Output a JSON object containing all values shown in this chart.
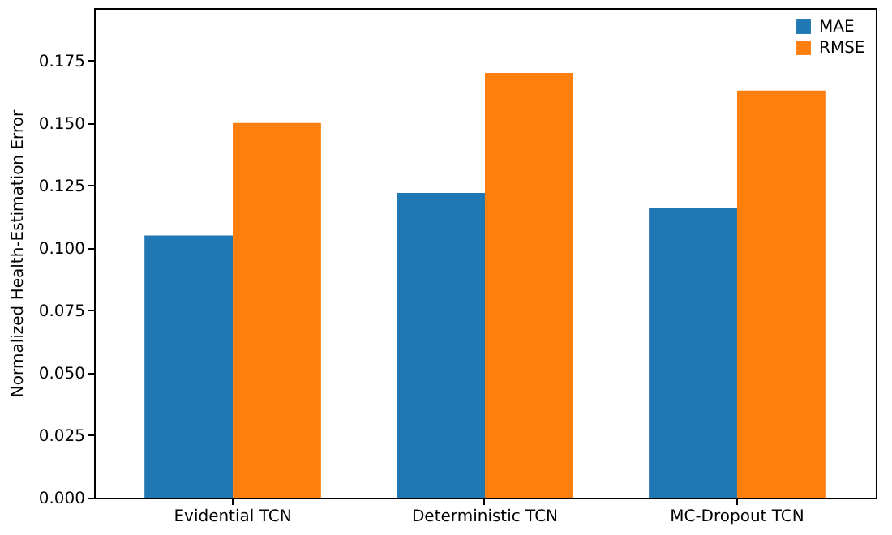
{
  "chart_data": {
    "type": "bar",
    "ylabel": "Normalized Health-Estimation Error",
    "categories": [
      "Evidential TCN",
      "Deterministic TCN",
      "MC-Dropout TCN"
    ],
    "series": [
      {
        "name": "MAE",
        "color": "#1f77b4",
        "values": [
          0.105,
          0.122,
          0.116
        ]
      },
      {
        "name": "RMSE",
        "color": "#ff7f0e",
        "values": [
          0.15,
          0.17,
          0.163
        ]
      }
    ],
    "ylim": [
      0,
      0.196
    ],
    "yticks": [
      {
        "value": 0,
        "label": "0.000"
      },
      {
        "value": 0.025,
        "label": "0.025"
      },
      {
        "value": 0.05,
        "label": "0.050"
      },
      {
        "value": 0.075,
        "label": "0.075"
      },
      {
        "value": 0.1,
        "label": "0.100"
      },
      {
        "value": 0.125,
        "label": "0.125"
      },
      {
        "value": 0.15,
        "label": "0.150"
      },
      {
        "value": 0.175,
        "label": "0.175"
      }
    ],
    "legend": "top right",
    "grid": false
  }
}
